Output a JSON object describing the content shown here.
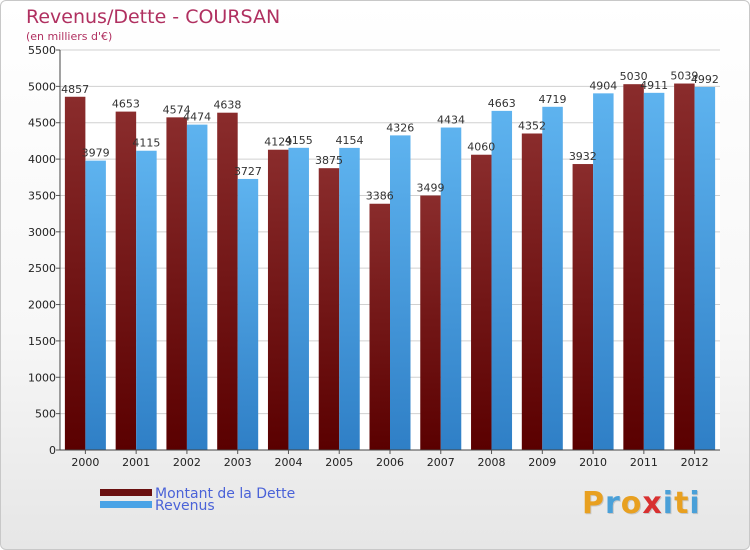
{
  "chart_data": {
    "type": "bar",
    "title": "Revenus/Dette - COURSAN",
    "subtitle": "(en milliers d'€)",
    "categories": [
      "2000",
      "2001",
      "2002",
      "2003",
      "2004",
      "2005",
      "2006",
      "2007",
      "2008",
      "2009",
      "2010",
      "2011",
      "2012"
    ],
    "series": [
      {
        "name": "Montant de la Dette",
        "color": "#7a1c1c",
        "values": [
          4857,
          4653,
          4574,
          4638,
          4129,
          3875,
          3386,
          3499,
          4060,
          4352,
          3932,
          5030,
          5039
        ]
      },
      {
        "name": "Revenus",
        "color": "#4aa3e6",
        "values": [
          3979,
          4115,
          4474,
          3727,
          4155,
          4154,
          4326,
          4434,
          4663,
          4719,
          4904,
          4911,
          4992
        ]
      }
    ],
    "ylim": [
      0,
      5500
    ],
    "yticks": [
      0,
      500,
      1000,
      1500,
      2000,
      2500,
      3000,
      3500,
      4000,
      4500,
      5000,
      5500
    ],
    "grid": true,
    "legend": "bottom-left"
  },
  "logo": {
    "letters": [
      "P",
      "r",
      "o",
      "x",
      "i",
      "t",
      "i"
    ],
    "colors": [
      "#e8a020",
      "#4aa0d8",
      "#e8a020",
      "#d83030",
      "#4aa0d8",
      "#e8a020",
      "#4aa0d8"
    ]
  }
}
